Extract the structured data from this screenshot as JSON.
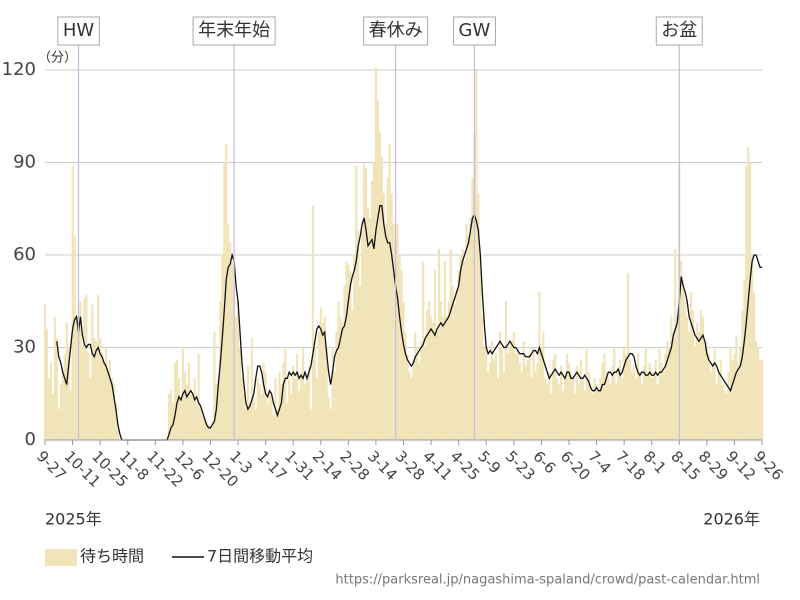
{
  "chart_data": {
    "type": "bar",
    "unit": "（分）",
    "ylim": [
      0,
      120
    ],
    "yticks": [
      0,
      30,
      60,
      90,
      120
    ],
    "grid": true,
    "annotations": [
      "HW",
      "年末年始",
      "春休み",
      "GW",
      "お盆"
    ],
    "year_labels": [
      "2025年",
      "2026年"
    ],
    "source": "https://parksreal.jp/nagashima-spaland/crowd/past-calendar.html",
    "categories": [
      "9-27",
      null,
      null,
      null,
      null,
      null,
      null,
      null,
      null,
      null,
      null,
      null,
      null,
      null,
      "10-11",
      null,
      null,
      null,
      null,
      null,
      null,
      null,
      null,
      null,
      null,
      null,
      null,
      null,
      "10-25",
      null,
      null,
      null,
      null,
      null,
      null,
      null,
      null,
      null,
      null,
      null,
      null,
      null,
      "11-8",
      null,
      null,
      null,
      null,
      null,
      null,
      null,
      null,
      null,
      null,
      null,
      null,
      null,
      "11-22",
      null,
      null,
      null,
      null,
      null,
      null,
      null,
      null,
      null,
      null,
      null,
      null,
      null,
      "12-6",
      null,
      null,
      null,
      null,
      null,
      null,
      null,
      null,
      null,
      null,
      null,
      null,
      null,
      "12-20",
      null,
      null,
      null,
      null,
      null,
      null,
      null,
      null,
      null,
      null,
      null,
      null,
      null,
      "1-3",
      null,
      null,
      null,
      null,
      null,
      null,
      null,
      null,
      null,
      null,
      null,
      null,
      null,
      "1-17",
      null,
      null,
      null,
      null,
      null,
      null,
      null,
      null,
      null,
      null,
      null,
      null,
      null,
      "1-31",
      null,
      null,
      null,
      null,
      null,
      null,
      null,
      null,
      null,
      null,
      null,
      null,
      null,
      "2-14",
      null,
      null,
      null,
      null,
      null,
      null,
      null,
      null,
      null,
      null,
      null,
      null,
      null,
      "2-28",
      null,
      null,
      null,
      null,
      null,
      null,
      null,
      null,
      null,
      null,
      null,
      null,
      null,
      "3-14",
      null,
      null,
      null,
      null,
      null,
      null,
      null,
      null,
      null,
      null,
      null,
      null,
      null,
      "3-28",
      null,
      null,
      null,
      null,
      null,
      null,
      null,
      null,
      null,
      null,
      null,
      null,
      null,
      "4-11",
      null,
      null,
      null,
      null,
      null,
      null,
      null,
      null,
      null,
      null,
      null,
      null,
      null,
      "4-25",
      null,
      null,
      null,
      null,
      null,
      null,
      null,
      null,
      null,
      null,
      null,
      null,
      null,
      "5-9",
      null,
      null,
      null,
      null,
      null,
      null,
      null,
      null,
      null,
      null,
      null,
      null,
      null,
      "5-23",
      null,
      null,
      null,
      null,
      null,
      null,
      null,
      null,
      null,
      null,
      null,
      null,
      null,
      "6-6",
      null,
      null,
      null,
      null,
      null,
      null,
      null,
      null,
      null,
      null,
      null,
      null,
      null,
      "6-20",
      null,
      null,
      null,
      null,
      null,
      null,
      null,
      null,
      null,
      null,
      null,
      null,
      null,
      "7-4",
      null,
      null,
      null,
      null,
      null,
      null,
      null,
      null,
      null,
      null,
      null,
      null,
      null,
      "7-18",
      null,
      null,
      null,
      null,
      null,
      null,
      null,
      null,
      null,
      null,
      null,
      null,
      null,
      "8-1",
      null,
      null,
      null,
      null,
      null,
      null,
      null,
      null,
      null,
      null,
      null,
      null,
      null,
      "8-15",
      null,
      null,
      null,
      null,
      null,
      null,
      null,
      null,
      null,
      null,
      null,
      null,
      null,
      "8-29",
      null,
      null,
      null,
      null,
      null,
      null,
      null,
      null,
      null,
      null,
      null,
      null,
      null,
      "9-12",
      null,
      null,
      null,
      null,
      null,
      null,
      null,
      null,
      null,
      null,
      null,
      null,
      null,
      "9-26"
    ],
    "series": [
      {
        "name": "待ち時間",
        "type": "bar",
        "color": "#f0e4b8",
        "values": [
          44,
          36,
          20,
          25,
          15,
          40,
          33,
          10,
          18,
          22,
          28,
          38,
          30,
          16,
          89,
          66,
          40,
          36,
          45,
          30,
          46,
          47,
          28,
          20,
          44,
          33,
          32,
          47,
          33,
          28,
          25,
          30,
          22,
          26,
          20,
          18,
          12,
          5,
          0,
          0,
          0,
          0,
          0,
          0,
          0,
          0,
          0,
          0,
          0,
          0,
          0,
          0,
          0,
          0,
          0,
          0,
          0,
          0,
          0,
          0,
          0,
          0,
          0,
          15,
          16,
          12,
          25,
          26,
          20,
          14,
          30,
          22,
          18,
          25,
          16,
          14,
          20,
          12,
          28,
          10,
          8,
          7,
          6,
          5,
          4,
          6,
          35,
          18,
          20,
          45,
          60,
          90,
          96,
          70,
          64,
          58,
          50,
          40,
          45,
          30,
          20,
          15,
          10,
          24,
          12,
          33,
          14,
          10,
          20,
          18,
          15,
          25,
          22,
          12,
          16,
          14,
          8,
          20,
          10,
          22,
          18,
          25,
          30,
          12,
          20,
          15,
          24,
          20,
          28,
          16,
          22,
          30,
          18,
          20,
          24,
          10,
          76,
          30,
          20,
          35,
          43,
          38,
          40,
          30,
          14,
          10,
          30,
          22,
          35,
          45,
          40,
          38,
          50,
          58,
          57,
          55,
          42,
          60,
          89,
          68,
          50,
          68,
          90,
          88,
          75,
          72,
          84,
          90,
          121,
          110,
          100,
          92,
          80,
          70,
          85,
          96,
          80,
          70,
          65,
          70,
          60,
          55,
          45,
          35,
          28,
          22,
          20,
          26,
          35,
          30,
          25,
          32,
          58,
          30,
          42,
          45,
          40,
          38,
          55,
          35,
          62,
          45,
          40,
          58,
          40,
          45,
          62,
          50,
          44,
          48,
          55,
          60,
          62,
          58,
          70,
          66,
          72,
          85,
          100,
          120,
          80,
          60,
          40,
          30,
          30,
          22,
          25,
          32,
          26,
          28,
          20,
          35,
          30,
          22,
          45,
          28,
          30,
          32,
          35,
          28,
          30,
          25,
          22,
          32,
          24,
          26,
          28,
          20,
          30,
          22,
          25,
          48,
          30,
          35,
          20,
          18,
          22,
          15,
          26,
          28,
          20,
          18,
          24,
          16,
          20,
          28,
          25,
          22,
          20,
          15,
          24,
          18,
          26,
          20,
          16,
          30,
          22,
          18,
          15,
          20,
          18,
          16,
          20,
          25,
          28,
          22,
          20,
          18,
          24,
          30,
          18,
          22,
          26,
          20,
          30,
          28,
          54,
          26,
          22,
          24,
          20,
          28,
          22,
          18,
          24,
          30,
          22,
          25,
          20,
          22,
          26,
          18,
          30,
          25,
          22,
          28,
          32,
          30,
          40,
          35,
          62,
          40,
          90,
          58,
          50,
          45,
          40,
          35,
          48,
          42,
          30,
          38,
          35,
          42,
          40,
          30,
          32,
          28,
          22,
          25,
          30,
          18,
          22,
          26,
          18,
          16,
          15,
          22,
          30,
          26,
          28,
          34,
          25,
          30,
          42,
          52,
          89,
          95,
          90,
          60,
          48,
          32,
          30,
          26,
          26
        ]
      },
      {
        "name": "7日間移動平均",
        "type": "line",
        "color": "#111111",
        "values": [
          null,
          null,
          null,
          null,
          null,
          null,
          32,
          27,
          25,
          22,
          20,
          18,
          24,
          30,
          36,
          39,
          40,
          35,
          40,
          34,
          31,
          30,
          31,
          31,
          28,
          27,
          29,
          30,
          28,
          27,
          25,
          24,
          22,
          20,
          18,
          14,
          10,
          5,
          2,
          0,
          0,
          0,
          0,
          0,
          0,
          0,
          0,
          0,
          0,
          0,
          0,
          0,
          0,
          0,
          0,
          0,
          0,
          0,
          0,
          0,
          0,
          0,
          0,
          2,
          4,
          5,
          8,
          12,
          14,
          13,
          15,
          16,
          14,
          15,
          16,
          15,
          13,
          14,
          12,
          11,
          9,
          7,
          5,
          4,
          4,
          5,
          6,
          10,
          18,
          25,
          33,
          42,
          52,
          56,
          57,
          60,
          58,
          50,
          45,
          35,
          25,
          18,
          12,
          10,
          11,
          13,
          15,
          20,
          24,
          24,
          22,
          18,
          15,
          14,
          16,
          15,
          12,
          10,
          8,
          10,
          12,
          18,
          20,
          20,
          22,
          21,
          22,
          21,
          22,
          20,
          21,
          20,
          22,
          20,
          22,
          24,
          28,
          32,
          36,
          37,
          36,
          34,
          35,
          28,
          22,
          18,
          22,
          27,
          29,
          30,
          33,
          36,
          37,
          40,
          45,
          50,
          53,
          55,
          58,
          63,
          66,
          70,
          72,
          68,
          63,
          64,
          65,
          62,
          68,
          72,
          76,
          76,
          70,
          66,
          64,
          64,
          60,
          55,
          50,
          46,
          40,
          35,
          31,
          28,
          26,
          25,
          24,
          25,
          27,
          28,
          29,
          30,
          31,
          33,
          34,
          35,
          36,
          35,
          34,
          36,
          37,
          38,
          37,
          38,
          39,
          40,
          42,
          44,
          46,
          48,
          50,
          55,
          58,
          60,
          62,
          64,
          68,
          72,
          73,
          71,
          68,
          60,
          48,
          38,
          30,
          28,
          29,
          28,
          29,
          30,
          31,
          32,
          31,
          30,
          30,
          31,
          32,
          31,
          30,
          30,
          29,
          28,
          28,
          28,
          27,
          27,
          27,
          28,
          29,
          29,
          28,
          30,
          28,
          26,
          24,
          22,
          20,
          21,
          22,
          23,
          22,
          21,
          22,
          21,
          20,
          22,
          22,
          20,
          20,
          21,
          22,
          21,
          20,
          20,
          21,
          20,
          19,
          17,
          16,
          16,
          17,
          16,
          16,
          18,
          18,
          20,
          22,
          22,
          21,
          22,
          22,
          23,
          21,
          22,
          24,
          26,
          27,
          28,
          28,
          27,
          24,
          22,
          21,
          22,
          22,
          21,
          21,
          22,
          21,
          21,
          22,
          21,
          22,
          22,
          23,
          24,
          26,
          28,
          30,
          34,
          36,
          38,
          45,
          53,
          50,
          48,
          45,
          40,
          38,
          36,
          34,
          33,
          32,
          33,
          34,
          32,
          28,
          26,
          25,
          24,
          25,
          24,
          22,
          21,
          20,
          19,
          18,
          17,
          16,
          18,
          20,
          22,
          23,
          24,
          27,
          32,
          38,
          45,
          52,
          58,
          60,
          60,
          58,
          56,
          56
        ]
      }
    ]
  }
}
